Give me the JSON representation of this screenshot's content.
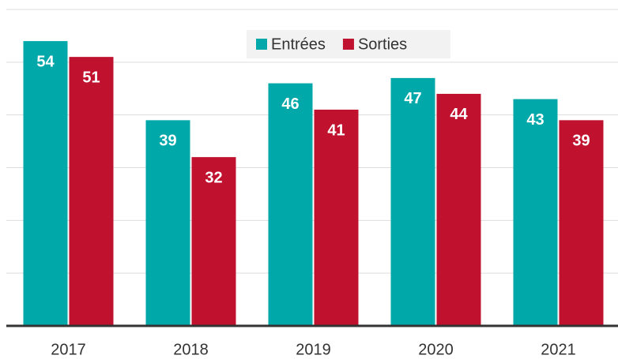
{
  "chart_data": {
    "type": "bar",
    "categories": [
      "2017",
      "2018",
      "2019",
      "2020",
      "2021"
    ],
    "series": [
      {
        "name": "Entrées",
        "color": "#00a8aa",
        "values": [
          54,
          39,
          46,
          47,
          43
        ]
      },
      {
        "name": "Sorties",
        "color": "#c0112f",
        "values": [
          51,
          32,
          41,
          44,
          39
        ]
      }
    ],
    "ylim": [
      0,
      60
    ],
    "yticks": [
      0,
      10,
      20,
      30,
      40,
      50,
      60
    ],
    "grid": true,
    "legend": "top"
  }
}
